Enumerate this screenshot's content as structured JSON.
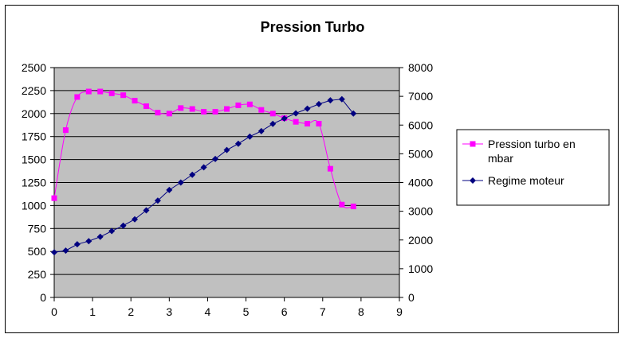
{
  "chart_data": {
    "type": "line",
    "title": "Pression Turbo",
    "x_axis": {
      "min": 0,
      "max": 9,
      "ticks": [
        0,
        1,
        2,
        3,
        4,
        5,
        6,
        7,
        8,
        9
      ]
    },
    "y_axis_left": {
      "min": 0,
      "max": 2500,
      "ticks": [
        0,
        250,
        500,
        750,
        1000,
        1250,
        1500,
        1750,
        2000,
        2250,
        2500
      ]
    },
    "y_axis_right": {
      "min": 0,
      "max": 8000,
      "ticks": [
        0,
        1000,
        2000,
        3000,
        4000,
        5000,
        6000,
        7000,
        8000
      ]
    },
    "grid": true,
    "legend_position": "right",
    "colors": {
      "plot_bg": "#c0c0c0",
      "turbo": "#ff00ff",
      "regime": "#000080"
    },
    "series": [
      {
        "name": "Pression turbo en mbar",
        "axis": "left",
        "marker": "square",
        "x": [
          0,
          0.3,
          0.6,
          0.9,
          1.2,
          1.5,
          1.8,
          2.1,
          2.4,
          2.7,
          3.0,
          3.3,
          3.6,
          3.9,
          4.2,
          4.5,
          4.8,
          5.1,
          5.4,
          5.7,
          6.0,
          6.3,
          6.6,
          6.9,
          7.2,
          7.5,
          7.8
        ],
        "y": [
          1080,
          1820,
          2180,
          2240,
          2240,
          2220,
          2200,
          2140,
          2080,
          2010,
          2000,
          2060,
          2050,
          2020,
          2020,
          2050,
          2090,
          2100,
          2040,
          2000,
          1950,
          1910,
          1890,
          1890,
          1400,
          1010,
          990
        ]
      },
      {
        "name": "Regime moteur",
        "axis": "right",
        "marker": "diamond",
        "x": [
          0,
          0.3,
          0.6,
          0.9,
          1.2,
          1.5,
          1.8,
          2.1,
          2.4,
          2.7,
          3.0,
          3.3,
          3.6,
          3.9,
          4.2,
          4.5,
          4.8,
          5.1,
          5.4,
          5.7,
          6.0,
          6.3,
          6.6,
          6.9,
          7.2,
          7.5,
          7.8
        ],
        "y": [
          1570,
          1630,
          1850,
          1960,
          2110,
          2310,
          2500,
          2720,
          3030,
          3370,
          3740,
          4000,
          4270,
          4530,
          4820,
          5130,
          5350,
          5600,
          5790,
          6040,
          6230,
          6410,
          6570,
          6730,
          6860,
          6900,
          6400
        ]
      }
    ]
  }
}
